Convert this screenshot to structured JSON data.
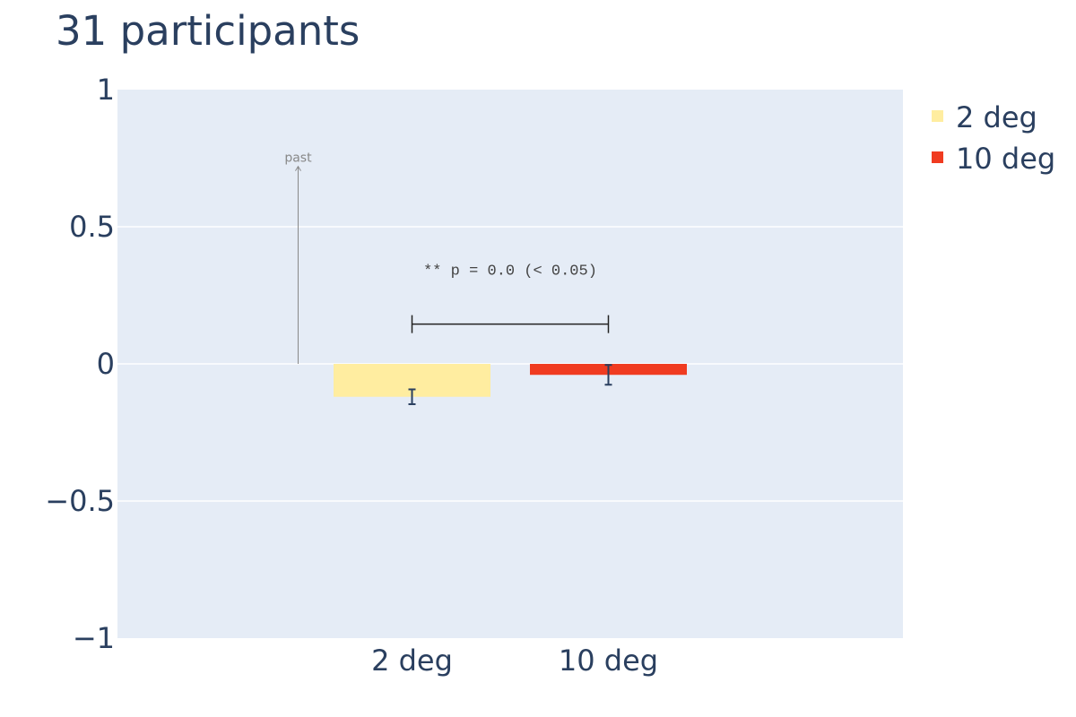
{
  "chart_data": {
    "type": "bar",
    "title": "31 participants",
    "categories": [
      "2 deg",
      "10 deg"
    ],
    "series": [
      {
        "name": "2 deg",
        "category": "2 deg",
        "value": -0.12,
        "error": 0.027,
        "color": "#ffeda0"
      },
      {
        "name": "10 deg",
        "category": "10 deg",
        "value": -0.04,
        "error": 0.036,
        "color": "#f03b20"
      }
    ],
    "ylim": [
      -1,
      1
    ],
    "yticks": [
      1,
      0.5,
      0,
      -0.5,
      -1
    ],
    "ytick_labels": [
      "1",
      "0.5",
      "0",
      "−0.5",
      "−1"
    ],
    "xlabel": "",
    "ylabel": "",
    "grid": true,
    "legend_position": "top-right",
    "plot_background": "#e5ecf6",
    "significance": {
      "text": "** p = 0.0  (< 0.05)",
      "from": "2 deg",
      "to": "10 deg",
      "y": 0.145
    },
    "annotation": {
      "text": "past",
      "x_frac": 0.23,
      "y_start": 0,
      "y_end": 0.72
    }
  }
}
